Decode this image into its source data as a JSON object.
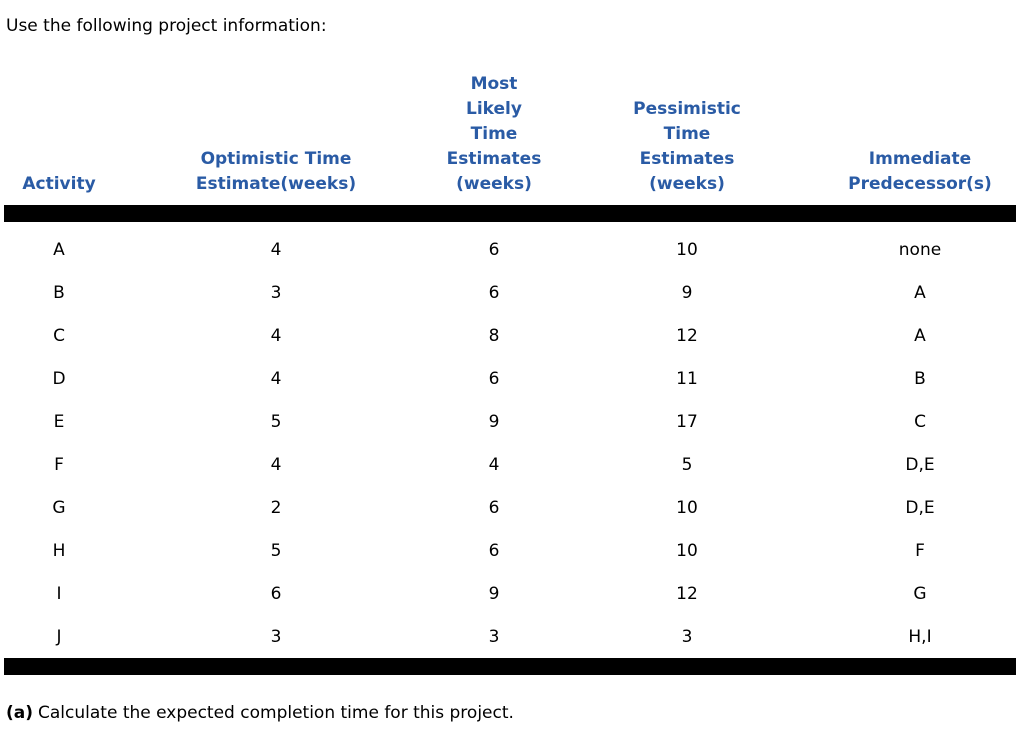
{
  "page": {
    "intro": "Use the following project information:",
    "question": {
      "label": "(a)",
      "text": "Calculate the expected completion time for this project."
    }
  },
  "colors": {
    "header-blue": "#2a5ba5",
    "rule-black": "#000000"
  },
  "table": {
    "columns": [
      {
        "id": "activity",
        "label": "Activity"
      },
      {
        "id": "optimistic",
        "label": "Optimistic Time\nEstimate(weeks)"
      },
      {
        "id": "most_likely",
        "label": "Most\nLikely\nTime\nEstimates\n(weeks)"
      },
      {
        "id": "pessimistic",
        "label": "Pessimistic\nTime\nEstimates\n(weeks)"
      },
      {
        "id": "predecessors",
        "label": "Immediate\nPredecessor(s)"
      }
    ],
    "rows": [
      {
        "activity": "A",
        "optimistic": "4",
        "most_likely": "6",
        "pessimistic": "10",
        "predecessors": "none"
      },
      {
        "activity": "B",
        "optimistic": "3",
        "most_likely": "6",
        "pessimistic": "9",
        "predecessors": "A"
      },
      {
        "activity": "C",
        "optimistic": "4",
        "most_likely": "8",
        "pessimistic": "12",
        "predecessors": "A"
      },
      {
        "activity": "D",
        "optimistic": "4",
        "most_likely": "6",
        "pessimistic": "11",
        "predecessors": "B"
      },
      {
        "activity": "E",
        "optimistic": "5",
        "most_likely": "9",
        "pessimistic": "17",
        "predecessors": "C"
      },
      {
        "activity": "F",
        "optimistic": "4",
        "most_likely": "4",
        "pessimistic": "5",
        "predecessors": "D,E"
      },
      {
        "activity": "G",
        "optimistic": "2",
        "most_likely": "6",
        "pessimistic": "10",
        "predecessors": "D,E"
      },
      {
        "activity": "H",
        "optimistic": "5",
        "most_likely": "6",
        "pessimistic": "10",
        "predecessors": "F"
      },
      {
        "activity": "I",
        "optimistic": "6",
        "most_likely": "9",
        "pessimistic": "12",
        "predecessors": "G"
      },
      {
        "activity": "J",
        "optimistic": "3",
        "most_likely": "3",
        "pessimistic": "3",
        "predecessors": "H,I"
      }
    ]
  }
}
